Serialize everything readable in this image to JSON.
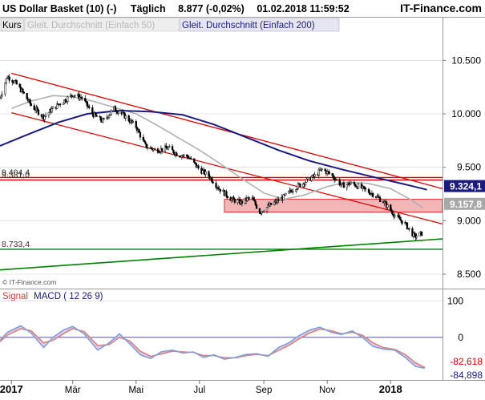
{
  "header": {
    "instrument": "US Dollar Basket (10) (-)",
    "interval": "Täglich",
    "quote": "8.877 (-0,02%)",
    "datetime": "01.02.2018 11:59:52",
    "brand": "IT-Finance.com"
  },
  "legend": {
    "kurs": "Kurs",
    "sma50": "Gleit. Durchschnitt (Einfach 50)",
    "sma200": "Gleit. Durchschnitt (Einfach 200)"
  },
  "watermark": "© IT-Finance.com",
  "colors": {
    "background": "#ffffff",
    "candle_up": "#ffffff",
    "candle_down": "#000000",
    "sma50": "#b0b0b0",
    "sma200": "#1a1a80",
    "channel": "#e00000",
    "support": "#008000",
    "zone_fill": "#f2b6b6",
    "macd_line": "#7f9fd6",
    "signal_line": "#d98080",
    "macd_area": "#d9bfe6"
  },
  "chart_data": [
    {
      "type": "candlestick",
      "title": "US Dollar Basket (10) (-)",
      "x_range": [
        "2016-12-21",
        "2018-02-20"
      ],
      "x_ticks": [
        {
          "date": "2017-01-01",
          "label": "2017"
        },
        {
          "date": "2017-03-01",
          "label": "Mär"
        },
        {
          "date": "2017-05-01",
          "label": "Mai"
        },
        {
          "date": "2017-07-01",
          "label": "Jul"
        },
        {
          "date": "2017-09-01",
          "label": "Sep"
        },
        {
          "date": "2017-11-01",
          "label": "Nov"
        },
        {
          "date": "2018-01-01",
          "label": "2018"
        }
      ],
      "y_range": [
        8.38,
        10.75
      ],
      "y_ticks": [
        {
          "value": 10.5,
          "label": "10.500"
        },
        {
          "value": 10.0,
          "label": "10.000"
        },
        {
          "value": 9.5,
          "label": "9.500"
        },
        {
          "value": 9.0,
          "label": "9.000"
        },
        {
          "value": 8.5,
          "label": "8.500"
        }
      ],
      "price_path": [
        [
          "2016-12-21",
          10.15
        ],
        [
          "2016-12-28",
          10.35
        ],
        [
          "2017-01-04",
          10.3
        ],
        [
          "2017-01-12",
          10.2
        ],
        [
          "2017-01-20",
          10.08
        ],
        [
          "2017-02-01",
          9.97
        ],
        [
          "2017-02-10",
          10.05
        ],
        [
          "2017-02-20",
          10.12
        ],
        [
          "2017-03-01",
          10.18
        ],
        [
          "2017-03-10",
          10.15
        ],
        [
          "2017-03-20",
          10.0
        ],
        [
          "2017-03-30",
          9.93
        ],
        [
          "2017-04-10",
          10.05
        ],
        [
          "2017-04-20",
          9.98
        ],
        [
          "2017-05-01",
          9.88
        ],
        [
          "2017-05-10",
          9.7
        ],
        [
          "2017-05-20",
          9.66
        ],
        [
          "2017-06-01",
          9.68
        ],
        [
          "2017-06-10",
          9.62
        ],
        [
          "2017-06-20",
          9.6
        ],
        [
          "2017-07-01",
          9.48
        ],
        [
          "2017-07-10",
          9.42
        ],
        [
          "2017-07-20",
          9.3
        ],
        [
          "2017-08-01",
          9.2
        ],
        [
          "2017-08-10",
          9.17
        ],
        [
          "2017-08-20",
          9.22
        ],
        [
          "2017-08-28",
          9.08
        ],
        [
          "2017-09-08",
          9.15
        ],
        [
          "2017-09-20",
          9.22
        ],
        [
          "2017-10-01",
          9.31
        ],
        [
          "2017-10-10",
          9.36
        ],
        [
          "2017-10-20",
          9.42
        ],
        [
          "2017-10-27",
          9.48
        ],
        [
          "2017-11-05",
          9.43
        ],
        [
          "2017-11-15",
          9.33
        ],
        [
          "2017-11-25",
          9.35
        ],
        [
          "2017-12-05",
          9.3
        ],
        [
          "2017-12-15",
          9.25
        ],
        [
          "2017-12-25",
          9.18
        ],
        [
          "2018-01-05",
          9.05
        ],
        [
          "2018-01-15",
          8.97
        ],
        [
          "2018-01-24",
          8.85
        ],
        [
          "2018-01-31",
          8.88
        ]
      ],
      "sma50": [
        [
          "2017-01-01",
          10.05
        ],
        [
          "2017-01-20",
          10.12
        ],
        [
          "2017-02-10",
          10.17
        ],
        [
          "2017-03-01",
          10.16
        ],
        [
          "2017-03-20",
          10.12
        ],
        [
          "2017-04-10",
          10.06
        ],
        [
          "2017-05-01",
          10.0
        ],
        [
          "2017-05-20",
          9.9
        ],
        [
          "2017-06-10",
          9.78
        ],
        [
          "2017-07-01",
          9.66
        ],
        [
          "2017-07-20",
          9.54
        ],
        [
          "2017-08-10",
          9.4
        ],
        [
          "2017-09-01",
          9.26
        ],
        [
          "2017-09-20",
          9.2
        ],
        [
          "2017-10-10",
          9.24
        ],
        [
          "2017-11-01",
          9.32
        ],
        [
          "2017-11-20",
          9.36
        ],
        [
          "2017-12-10",
          9.35
        ],
        [
          "2018-01-01",
          9.3
        ],
        [
          "2018-01-20",
          9.2
        ],
        [
          "2018-02-01",
          9.12
        ]
      ],
      "sma200": [
        [
          "2016-12-21",
          9.7
        ],
        [
          "2017-01-15",
          9.8
        ],
        [
          "2017-02-15",
          9.92
        ],
        [
          "2017-03-15",
          10.0
        ],
        [
          "2017-04-15",
          10.03
        ],
        [
          "2017-05-15",
          10.02
        ],
        [
          "2017-06-15",
          9.99
        ],
        [
          "2017-07-15",
          9.9
        ],
        [
          "2017-08-15",
          9.78
        ],
        [
          "2017-09-15",
          9.66
        ],
        [
          "2017-10-15",
          9.56
        ],
        [
          "2017-11-15",
          9.48
        ],
        [
          "2017-12-15",
          9.41
        ],
        [
          "2018-01-15",
          9.34
        ],
        [
          "2018-02-05",
          9.29
        ]
      ],
      "channel_upper": [
        [
          "2017-01-01",
          10.38
        ],
        [
          "2018-02-20",
          9.3
        ]
      ],
      "channel_lower": [
        [
          "2017-01-01",
          10.01
        ],
        [
          "2018-02-20",
          8.97
        ]
      ],
      "support_line": [
        [
          "2016-12-21",
          8.54
        ],
        [
          "2018-02-20",
          8.83
        ]
      ],
      "zone": {
        "low": 9.08,
        "high": 9.2,
        "from": "2017-07-25",
        "to": "2018-02-20"
      },
      "levels": [
        {
          "value": 9.404,
          "label": "9.404,4",
          "color": "#e00000"
        },
        {
          "value": 9.381,
          "label": "9.381,0",
          "color": "#e00000"
        },
        {
          "value": 8.733,
          "label": "8.733,4",
          "color": "#008000"
        }
      ],
      "current_labels": [
        {
          "value": 9.324,
          "label": "9.324,1",
          "bg": "#1a1a80",
          "fg": "#ffffff"
        },
        {
          "value": 9.158,
          "label": "9.157,8",
          "bg": "#a8a8a8",
          "fg": "#ffffff"
        }
      ]
    },
    {
      "type": "line",
      "title": "MACD ( 12 26 9)",
      "signal_label": "Signal",
      "macd_label": "MACD ( 12 26 9)",
      "y_range": [
        -115,
        130
      ],
      "y_ticks": [
        {
          "value": 100,
          "label": "100"
        },
        {
          "value": 0,
          "label": "0"
        }
      ],
      "zero_line": 0,
      "macd": [
        [
          "2016-12-21",
          -8
        ],
        [
          "2016-12-28",
          14
        ],
        [
          "2017-01-10",
          32
        ],
        [
          "2017-01-20",
          12
        ],
        [
          "2017-02-01",
          -28
        ],
        [
          "2017-02-10",
          0
        ],
        [
          "2017-02-20",
          20
        ],
        [
          "2017-03-01",
          30
        ],
        [
          "2017-03-12",
          10
        ],
        [
          "2017-03-25",
          -35
        ],
        [
          "2017-04-05",
          -15
        ],
        [
          "2017-04-15",
          10
        ],
        [
          "2017-04-25",
          -18
        ],
        [
          "2017-05-05",
          -48
        ],
        [
          "2017-05-15",
          -58
        ],
        [
          "2017-05-25",
          -40
        ],
        [
          "2017-06-05",
          -35
        ],
        [
          "2017-06-15",
          -43
        ],
        [
          "2017-06-25",
          -40
        ],
        [
          "2017-07-05",
          -55
        ],
        [
          "2017-07-15",
          -48
        ],
        [
          "2017-07-25",
          -60
        ],
        [
          "2017-08-05",
          -55
        ],
        [
          "2017-08-15",
          -47
        ],
        [
          "2017-08-25",
          -45
        ],
        [
          "2017-09-05",
          -52
        ],
        [
          "2017-09-15",
          -28
        ],
        [
          "2017-09-25",
          -15
        ],
        [
          "2017-10-05",
          5
        ],
        [
          "2017-10-15",
          20
        ],
        [
          "2017-10-25",
          28
        ],
        [
          "2017-11-05",
          14
        ],
        [
          "2017-11-15",
          8
        ],
        [
          "2017-11-25",
          18
        ],
        [
          "2017-12-05",
          0
        ],
        [
          "2017-12-15",
          -25
        ],
        [
          "2017-12-25",
          -32
        ],
        [
          "2018-01-05",
          -35
        ],
        [
          "2018-01-15",
          -55
        ],
        [
          "2018-01-25",
          -80
        ],
        [
          "2018-02-03",
          -85
        ]
      ],
      "signal": [
        [
          "2016-12-21",
          -12
        ],
        [
          "2016-12-28",
          6
        ],
        [
          "2017-01-10",
          24
        ],
        [
          "2017-01-20",
          18
        ],
        [
          "2017-02-01",
          -15
        ],
        [
          "2017-02-10",
          -8
        ],
        [
          "2017-02-20",
          10
        ],
        [
          "2017-03-01",
          24
        ],
        [
          "2017-03-12",
          16
        ],
        [
          "2017-03-25",
          -22
        ],
        [
          "2017-04-05",
          -20
        ],
        [
          "2017-04-15",
          0
        ],
        [
          "2017-04-25",
          -10
        ],
        [
          "2017-05-05",
          -38
        ],
        [
          "2017-05-15",
          -52
        ],
        [
          "2017-05-25",
          -46
        ],
        [
          "2017-06-05",
          -38
        ],
        [
          "2017-06-15",
          -40
        ],
        [
          "2017-06-25",
          -41
        ],
        [
          "2017-07-05",
          -50
        ],
        [
          "2017-07-15",
          -50
        ],
        [
          "2017-07-25",
          -56
        ],
        [
          "2017-08-05",
          -56
        ],
        [
          "2017-08-15",
          -50
        ],
        [
          "2017-08-25",
          -47
        ],
        [
          "2017-09-05",
          -50
        ],
        [
          "2017-09-15",
          -36
        ],
        [
          "2017-09-25",
          -22
        ],
        [
          "2017-10-05",
          -4
        ],
        [
          "2017-10-15",
          12
        ],
        [
          "2017-10-25",
          23
        ],
        [
          "2017-11-05",
          18
        ],
        [
          "2017-11-15",
          10
        ],
        [
          "2017-11-25",
          14
        ],
        [
          "2017-12-05",
          6
        ],
        [
          "2017-12-15",
          -15
        ],
        [
          "2017-12-25",
          -28
        ],
        [
          "2018-01-05",
          -33
        ],
        [
          "2018-01-15",
          -47
        ],
        [
          "2018-01-25",
          -70
        ],
        [
          "2018-02-03",
          -83
        ]
      ],
      "current_labels": [
        {
          "value": -82.618,
          "label": "-82,618",
          "bg": "#ffffff",
          "fg": "#e00000"
        },
        {
          "value": -84.898,
          "label": "-84,898",
          "bg": "#ffffff",
          "fg": "#1a1a80"
        }
      ]
    }
  ]
}
